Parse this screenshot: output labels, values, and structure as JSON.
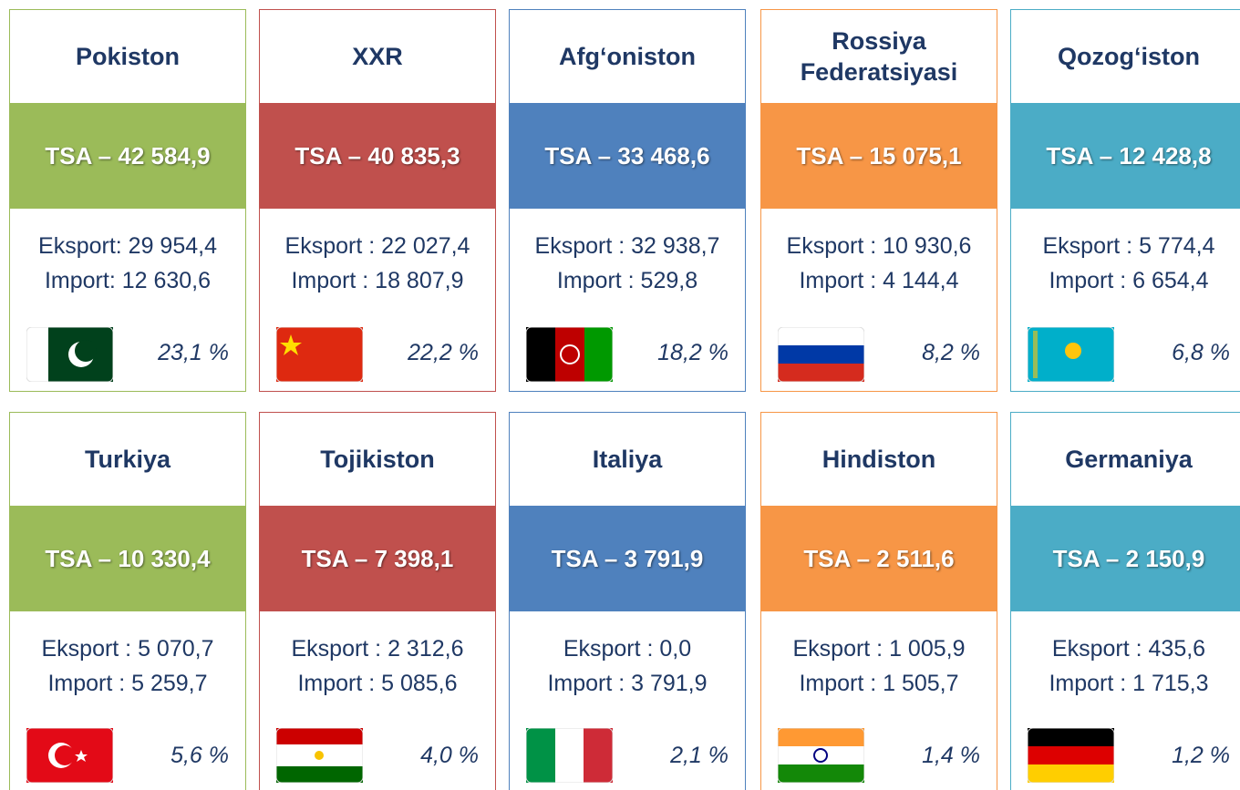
{
  "cards": [
    {
      "country": "Pokiston",
      "tsa": "TSA – 42 584,9",
      "eksport": "Eksport: 29 954,4",
      "import": "Import: 12 630,6",
      "share": "23,1 %"
    },
    {
      "country": "XXR",
      "tsa": "TSA – 40 835,3",
      "eksport": "Eksport : 22 027,4",
      "import": "Import : 18 807,9",
      "share": "22,2 %"
    },
    {
      "country": "Afg‘oniston",
      "tsa": "TSA – 33 468,6",
      "eksport": "Eksport : 32 938,7",
      "import": "Import : 529,8",
      "share": "18,2 %"
    },
    {
      "country": "Rossiya Federatsiyasi",
      "tsa": "TSA – 15 075,1",
      "eksport": "Eksport : 10 930,6",
      "import": "Import : 4 144,4",
      "share": "8,2 %"
    },
    {
      "country": "Qozog‘iston",
      "tsa": "TSA – 12 428,8",
      "eksport": "Eksport : 5 774,4",
      "import": "Import : 6 654,4",
      "share": "6,8 %"
    },
    {
      "country": "Turkiya",
      "tsa": "TSA – 10 330,4",
      "eksport": "Eksport : 5 070,7",
      "import": "Import : 5 259,7",
      "share": "5,6 %"
    },
    {
      "country": "Tojikiston",
      "tsa": "TSA – 7 398,1",
      "eksport": "Eksport : 2 312,6",
      "import": "Import : 5 085,6",
      "share": "4,0 %"
    },
    {
      "country": "Italiya",
      "tsa": "TSA – 3 791,9",
      "eksport": "Eksport : 0,0",
      "import": "Import : 3 791,9",
      "share": "2,1 %"
    },
    {
      "country": "Hindiston",
      "tsa": "TSA – 2 511,6",
      "eksport": "Eksport : 1 005,9",
      "import": "Import : 1 505,7",
      "share": "1,4 %"
    },
    {
      "country": "Germaniya",
      "tsa": "TSA – 2 150,9",
      "eksport": "Eksport : 435,6",
      "import": "Import : 1 715,3",
      "share": "1,2 %"
    }
  ]
}
